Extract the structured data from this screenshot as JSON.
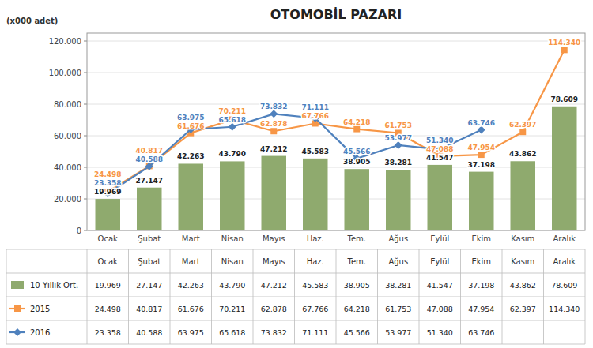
{
  "chart_data": {
    "type": "bar",
    "title": "OTOMOBİL PAZARI",
    "y_label": "(x000 adet)",
    "categories": [
      "Ocak",
      "Şubat",
      "Mart",
      "Nisan",
      "Mayıs",
      "Haz.",
      "Tem.",
      "Ağus",
      "Eylül",
      "Ekim",
      "Kasım",
      "Aralık"
    ],
    "series": [
      {
        "name": "10 Yıllık Ort.",
        "type": "bar",
        "color": "#8faa6e",
        "values": [
          19969,
          27147,
          42263,
          43790,
          47212,
          45583,
          38905,
          38281,
          41547,
          37198,
          43862,
          78609
        ],
        "value_labels": [
          "19.969",
          "27.147",
          "42.263",
          "43.790",
          "47.212",
          "45.583",
          "38.905",
          "38.281",
          "41.547",
          "37.198",
          "43.862",
          "78.609"
        ]
      },
      {
        "name": "2015",
        "type": "line",
        "color": "#f79646",
        "marker": "square",
        "values": [
          24498,
          40817,
          61676,
          70211,
          62878,
          67766,
          64218,
          61753,
          47088,
          47954,
          62397,
          114340
        ],
        "value_labels": [
          "24.498",
          "40.817",
          "61.676",
          "70.211",
          "62.878",
          "67.766",
          "64.218",
          "61.753",
          "47.088",
          "47.954",
          "62.397",
          "114.340"
        ]
      },
      {
        "name": "2016",
        "type": "line",
        "color": "#4f81bd",
        "marker": "diamond",
        "values": [
          23358,
          40588,
          63975,
          65618,
          73832,
          71111,
          45566,
          53977,
          51340,
          63746,
          null,
          null
        ],
        "value_labels": [
          "23.358",
          "40.588",
          "63.975",
          "65.618",
          "73.832",
          "71.111",
          "45.566",
          "53.977",
          "51.340",
          "63.746",
          null,
          null
        ]
      }
    ],
    "ylim": [
      0,
      125000
    ],
    "yticks": [
      0,
      {
        "value": 20000,
        "label": "20.000"
      },
      {
        "value": 40000,
        "label": "40.000"
      },
      {
        "value": 60000,
        "label": "60.000"
      },
      {
        "value": 80000,
        "label": "80.000"
      },
      {
        "value": 100000,
        "label": "100.000"
      },
      {
        "value": 120000,
        "label": "120.000"
      }
    ],
    "grid": true,
    "data_labels": true,
    "legend": "bottom"
  }
}
